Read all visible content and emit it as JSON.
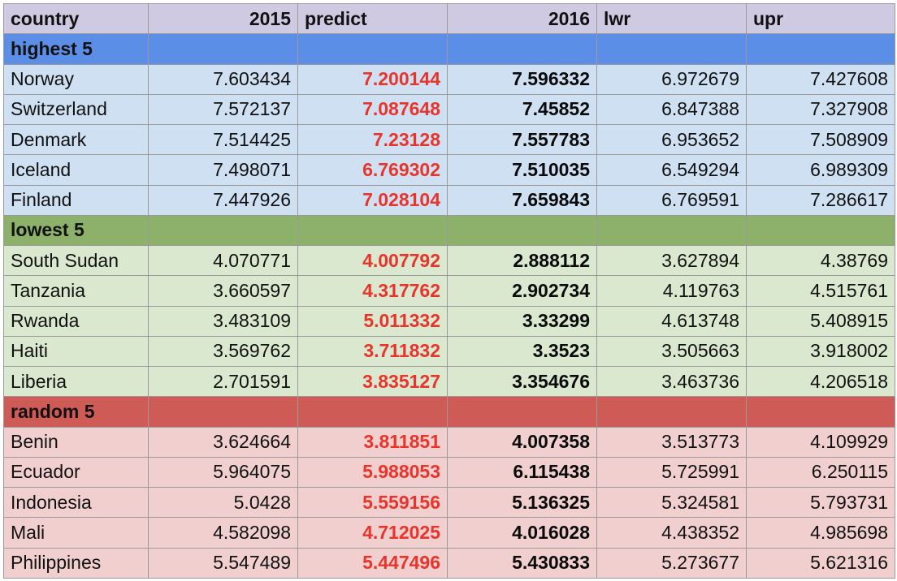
{
  "table": {
    "headers": [
      "country",
      "2015",
      "predict",
      "2016",
      "lwr",
      "upr"
    ],
    "header_color": "#cfcae2",
    "sections": [
      {
        "label": "highest 5",
        "header_color": "#5b8ee6",
        "row_color": "#cfe0f3",
        "rows": [
          [
            "Norway",
            "7.603434",
            "7.200144",
            "7.596332",
            "6.972679",
            "7.427608"
          ],
          [
            "Switzerland",
            "7.572137",
            "7.087648",
            "7.45852",
            "6.847388",
            "7.327908"
          ],
          [
            "Denmark",
            "7.514425",
            "7.23128",
            "7.557783",
            "6.953652",
            "7.508909"
          ],
          [
            "Iceland",
            "7.498071",
            "6.769302",
            "7.510035",
            "6.549294",
            "6.989309"
          ],
          [
            "Finland",
            "7.447926",
            "7.028104",
            "7.659843",
            "6.769591",
            "7.286617"
          ]
        ]
      },
      {
        "label": "lowest 5",
        "header_color": "#8db16a",
        "row_color": "#d9e8cf",
        "rows": [
          [
            "South Sudan",
            "4.070771",
            "4.007792",
            "2.888112",
            "3.627894",
            "4.38769"
          ],
          [
            "Tanzania",
            "3.660597",
            "4.317762",
            "2.902734",
            "4.119763",
            "4.515761"
          ],
          [
            "Rwanda",
            "3.483109",
            "5.011332",
            "3.33299",
            "4.613748",
            "5.408915"
          ],
          [
            "Haiti",
            "3.569762",
            "3.711832",
            "3.3523",
            "3.505663",
            "3.918002"
          ],
          [
            "Liberia",
            "2.701591",
            "3.835127",
            "3.354676",
            "3.463736",
            "4.206518"
          ]
        ]
      },
      {
        "label": "random 5",
        "header_color": "#cf5b57",
        "row_color": "#f2cfcf",
        "rows": [
          [
            "Benin",
            "3.624664",
            "3.811851",
            "4.007358",
            "3.513773",
            "4.109929"
          ],
          [
            "Ecuador",
            "5.964075",
            "5.988053",
            "6.115438",
            "5.725991",
            "6.250115"
          ],
          [
            "Indonesia",
            "5.0428",
            "5.559156",
            "5.136325",
            "5.324581",
            "5.793731"
          ],
          [
            "Mali",
            "4.582098",
            "4.712025",
            "4.016028",
            "4.438352",
            "4.985698"
          ],
          [
            "Philippines",
            "5.547489",
            "5.447496",
            "5.430833",
            "5.273677",
            "5.621316"
          ]
        ]
      }
    ],
    "predict_color": "#e8342b"
  }
}
